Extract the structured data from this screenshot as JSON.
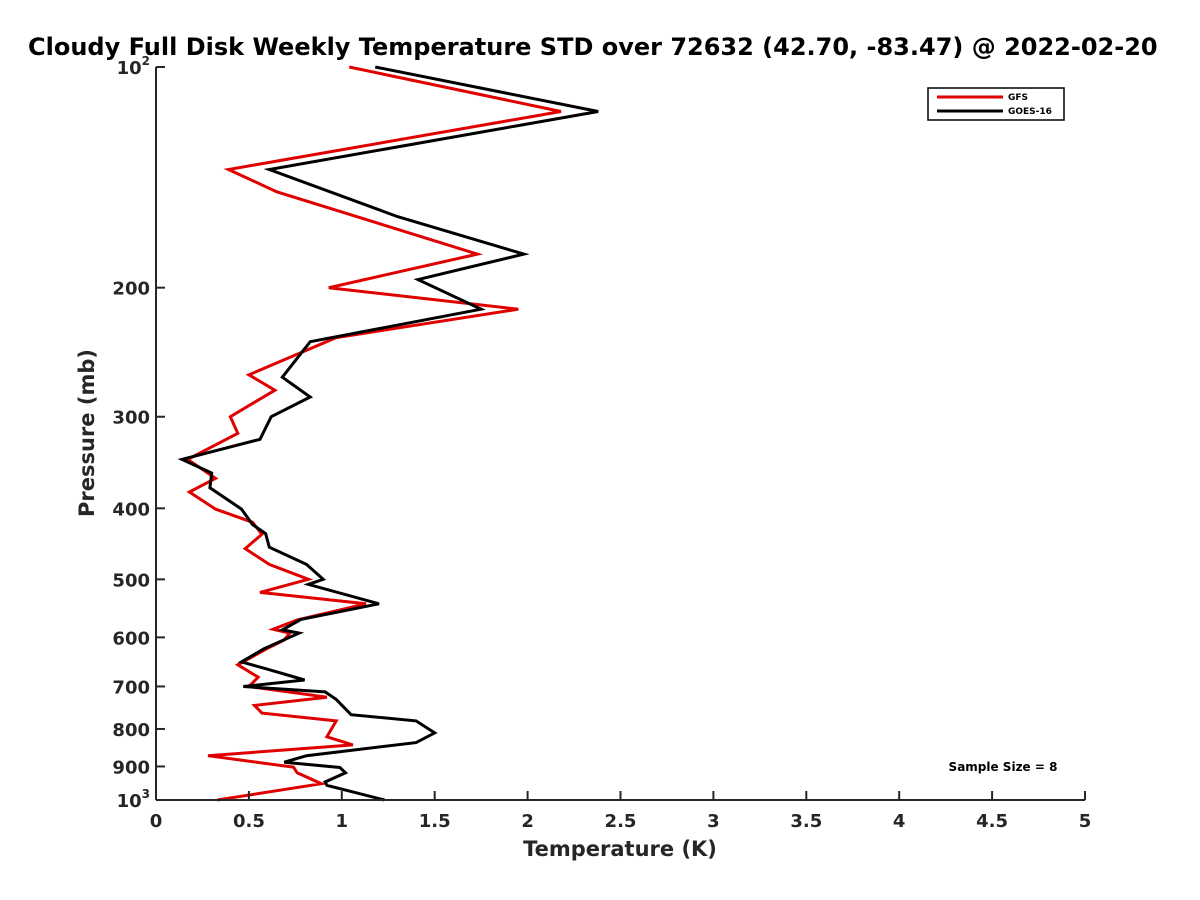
{
  "chart_data": {
    "type": "line",
    "title": "Cloudy Full Disk Weekly Temperature STD over 72632 (42.70, -83.47) @ 2022-02-20",
    "xlabel": "Temperature (K)",
    "ylabel": "Pressure (mb)",
    "xlim": [
      0,
      5
    ],
    "ylim": [
      1000,
      100
    ],
    "y_scale": "log",
    "y_reversed": true,
    "x_ticks": [
      0,
      0.5,
      1,
      1.5,
      2,
      2.5,
      3,
      3.5,
      4,
      4.5,
      5
    ],
    "x_tick_labels": [
      "0",
      "0.5",
      "1",
      "1.5",
      "2",
      "2.5",
      "3",
      "3.5",
      "4",
      "4.5",
      "5"
    ],
    "y_ticks": [
      100,
      200,
      300,
      400,
      500,
      600,
      700,
      800,
      900,
      1000
    ],
    "y_tick_labels": [
      {
        "base": "10",
        "exp": "2"
      },
      {
        "base": "200"
      },
      {
        "base": "300"
      },
      {
        "base": "400"
      },
      {
        "base": "500"
      },
      {
        "base": "600"
      },
      {
        "base": "700"
      },
      {
        "base": "800"
      },
      {
        "base": "900"
      },
      {
        "base": "10",
        "exp": "3"
      }
    ],
    "grid": false,
    "legend_position": "top-right",
    "annotation": "Sample Size = 8",
    "series": [
      {
        "name": "GFS",
        "color": "#e00000",
        "points": [
          [
            1.04,
            100
          ],
          [
            2.18,
            115
          ],
          [
            0.39,
            138
          ],
          [
            0.65,
            148
          ],
          [
            1.73,
            180
          ],
          [
            0.93,
            200
          ],
          [
            1.95,
            214
          ],
          [
            0.97,
            234
          ],
          [
            0.5,
            263
          ],
          [
            0.64,
            276
          ],
          [
            0.4,
            300
          ],
          [
            0.44,
            316
          ],
          [
            0.17,
            343
          ],
          [
            0.32,
            364
          ],
          [
            0.18,
            380
          ],
          [
            0.32,
            401
          ],
          [
            0.52,
            418
          ],
          [
            0.57,
            434
          ],
          [
            0.48,
            454
          ],
          [
            0.61,
            477
          ],
          [
            0.82,
            500
          ],
          [
            0.56,
            521
          ],
          [
            1.13,
            540
          ],
          [
            0.76,
            568
          ],
          [
            0.63,
            585
          ],
          [
            0.72,
            592
          ],
          [
            0.69,
            605
          ],
          [
            0.6,
            621
          ],
          [
            0.44,
            654
          ],
          [
            0.55,
            680
          ],
          [
            0.5,
            700
          ],
          [
            0.92,
            724
          ],
          [
            0.53,
            743
          ],
          [
            0.57,
            761
          ],
          [
            0.97,
            780
          ],
          [
            0.92,
            820
          ],
          [
            1.06,
            841
          ],
          [
            0.28,
            870
          ],
          [
            0.74,
            902
          ],
          [
            0.76,
            918
          ],
          [
            0.89,
            950
          ],
          [
            0.33,
            1000
          ]
        ]
      },
      {
        "name": "GOES-16",
        "color": "#000000",
        "points": [
          [
            1.18,
            100
          ],
          [
            2.38,
            115
          ],
          [
            0.61,
            138
          ],
          [
            1.3,
            160
          ],
          [
            1.98,
            180
          ],
          [
            1.41,
            195
          ],
          [
            1.75,
            214
          ],
          [
            0.83,
            237
          ],
          [
            0.68,
            265
          ],
          [
            0.83,
            282
          ],
          [
            0.62,
            300
          ],
          [
            0.56,
            322
          ],
          [
            0.14,
            343
          ],
          [
            0.3,
            358
          ],
          [
            0.29,
            375
          ],
          [
            0.46,
            401
          ],
          [
            0.52,
            421
          ],
          [
            0.59,
            433
          ],
          [
            0.61,
            452
          ],
          [
            0.81,
            477
          ],
          [
            0.9,
            500
          ],
          [
            0.82,
            508
          ],
          [
            1.2,
            540
          ],
          [
            0.78,
            567
          ],
          [
            0.68,
            586
          ],
          [
            0.77,
            592
          ],
          [
            0.58,
            622
          ],
          [
            0.46,
            648
          ],
          [
            0.6,
            663
          ],
          [
            0.8,
            686
          ],
          [
            0.47,
            700
          ],
          [
            0.91,
            712
          ],
          [
            0.97,
            729
          ],
          [
            1.05,
            765
          ],
          [
            1.4,
            780
          ],
          [
            1.5,
            810
          ],
          [
            1.4,
            835
          ],
          [
            0.81,
            870
          ],
          [
            0.69,
            888
          ],
          [
            0.99,
            903
          ],
          [
            1.02,
            918
          ],
          [
            0.91,
            945
          ],
          [
            0.92,
            955
          ],
          [
            1.23,
            1000
          ]
        ]
      }
    ]
  }
}
